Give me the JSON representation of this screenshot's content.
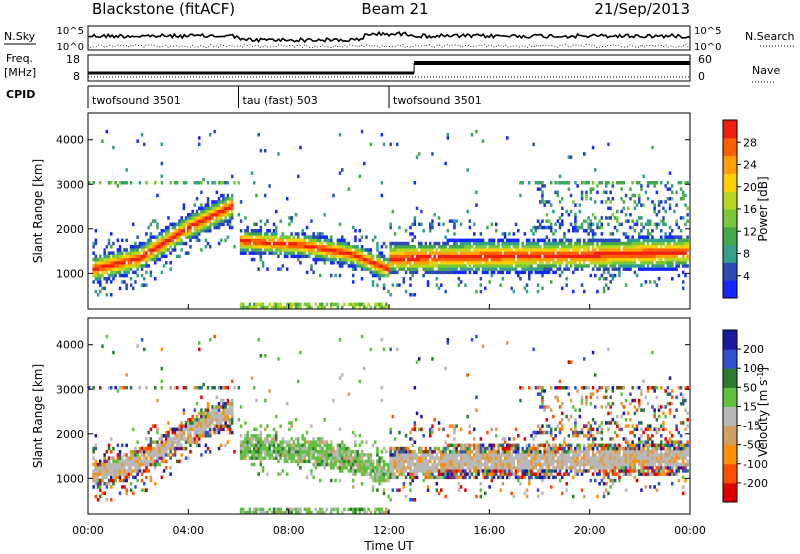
{
  "header": {
    "station": "Blackstone (fitACF)",
    "beam": "Beam 21",
    "date": "21/Sep/2013"
  },
  "top_panels": {
    "nsky_label": "N.Sky",
    "nsky_ticks": [
      "10^5",
      "10^0"
    ],
    "nsearch_label": "N.Search",
    "nsearch_ticks": [
      "10^5",
      "10^0"
    ],
    "freq_label": "Freq.",
    "freq_unit": "[MHz]",
    "freq_ticks": [
      "18",
      "8"
    ],
    "nave_label": "Nave",
    "nave_ticks": [
      "60",
      "0"
    ],
    "cpid_label": "CPID",
    "cpid_segments": [
      {
        "label": "twofsound 3501",
        "start": 0,
        "end": 6
      },
      {
        "label": "tau (fast) 503",
        "start": 6,
        "end": 12
      },
      {
        "label": "twofsound 3501",
        "start": 12,
        "end": 24
      }
    ]
  },
  "chart_data": [
    {
      "type": "heatmap",
      "panel": "power",
      "ylabel": "Slant Range [km]",
      "xlabel": "Time UT",
      "x_ticks": [
        "00:00",
        "04:00",
        "08:00",
        "12:00",
        "16:00",
        "20:00",
        "00:00"
      ],
      "xlim": [
        0,
        24
      ],
      "ylim": [
        200,
        4600
      ],
      "y_ticks": [
        1000,
        2000,
        3000,
        4000
      ],
      "colorbar": {
        "label": "Power [dB]",
        "ticks": [
          "4",
          "8",
          "12",
          "16",
          "20",
          "24",
          "28"
        ],
        "colors": [
          "#1428ff",
          "#2a4ab8",
          "#35a08a",
          "#45a84a",
          "#78c83a",
          "#b8d820",
          "#ffd000",
          "#ffa000",
          "#ff6000",
          "#f02010"
        ]
      },
      "echo_bands": [
        {
          "t": [
            0.1,
            2.0,
            4.0,
            5.8
          ],
          "r": [
            1050,
            1300,
            2000,
            2500
          ],
          "width": 320
        },
        {
          "t": [
            6.0,
            8.5,
            10.5,
            12.0
          ],
          "r": [
            1700,
            1600,
            1400,
            1050
          ],
          "width": 280
        },
        {
          "t": [
            12.0,
            16.0,
            20.0,
            24.0
          ],
          "r": [
            1300,
            1350,
            1380,
            1450
          ],
          "width": 380
        }
      ]
    },
    {
      "type": "heatmap",
      "panel": "velocity",
      "ylabel": "Slant Range [km]",
      "xlabel": "Time UT",
      "x_ticks": [
        "00:00",
        "04:00",
        "08:00",
        "12:00",
        "16:00",
        "20:00",
        "00:00"
      ],
      "xlim": [
        0,
        24
      ],
      "ylim": [
        200,
        4600
      ],
      "y_ticks": [
        1000,
        2000,
        3000,
        4000
      ],
      "colorbar": {
        "label": "Velocity [m s",
        "label_sup": "-1",
        "label_close": "]",
        "ticks": [
          "200",
          "100",
          "50",
          "15",
          "-15",
          "-50",
          "-100",
          "-200"
        ],
        "colors": [
          "#1a1aa0",
          "#3050d0",
          "#2a7a30",
          "#60c040",
          "#b8b8b8",
          "#d0a060",
          "#ff9000",
          "#ff5000",
          "#e00000"
        ]
      }
    }
  ]
}
